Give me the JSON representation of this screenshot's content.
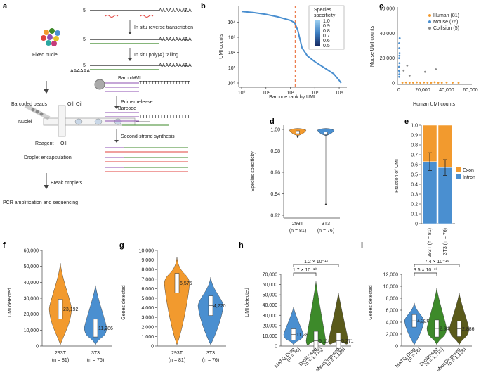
{
  "panels": {
    "a": "a",
    "b": "b",
    "c": "c",
    "d": "d",
    "e": "e",
    "f": "f",
    "g": "g",
    "h": "h",
    "i": "i"
  },
  "panel_a": {
    "fixed_nuclei": "Fixed nuclei",
    "step_rt": "In situ reverse transcription",
    "step_polya": "In situ poly(A) tailing",
    "five": "5′",
    "three": "3′",
    "polyA": "AAAAAAAAAA",
    "polyA_short": "AAAAAA",
    "barcoded_beads": "Barcoded beads",
    "oil": "Oil",
    "nuclei": "Nuclei",
    "reagent": "Reagent",
    "droplet": "Droplet encapsulation",
    "barcode": "Barcode",
    "umi": "UMI",
    "tttt": "TTTTTTTTTTTTTTTTT",
    "primer_release": "Primer release",
    "second_strand": "Second-strand synthesis",
    "break_droplets": "Break droplets",
    "pcr": "PCR amplification and sequencing"
  },
  "chart_data": [
    {
      "id": "b",
      "type": "line",
      "title": "",
      "xlabel": "Barcode rank by UMI",
      "ylabel": "UMI counts",
      "xscale": "log",
      "yscale": "log",
      "x": [
        1,
        3,
        10,
        30,
        100,
        150,
        200,
        300,
        500,
        1000,
        3000,
        6000,
        10000,
        12000
      ],
      "y": [
        50000,
        42000,
        32000,
        22000,
        13000,
        9000,
        3000,
        200,
        60,
        25,
        8,
        4,
        1.5,
        1
      ],
      "xticks": [
        "10⁰",
        "10¹",
        "10²",
        "10³",
        "10⁴"
      ],
      "yticks": [
        "10⁰",
        "10¹",
        "10²",
        "10³",
        "10⁴"
      ],
      "cutoff_rank": 157,
      "legend": {
        "title_line1": "Species",
        "title_line2": "specificity",
        "ticks": [
          "1.0",
          "0.9",
          "0.8",
          "0.7",
          "0.6",
          "0.5"
        ]
      }
    },
    {
      "id": "c",
      "type": "scatter",
      "xlabel": "Human UMI counts",
      "ylabel": "Mouse UMI counts",
      "xlim": [
        0,
        60000
      ],
      "ylim": [
        0,
        60000
      ],
      "xticks": [
        "0",
        "20,000",
        "40,000",
        "60,000"
      ],
      "yticks": [
        "0",
        "20,000",
        "40,000",
        "60,000"
      ],
      "series": [
        {
          "name": "Human (81)",
          "color": "#f29a2e",
          "points": [
            [
              3000,
              300
            ],
            [
              6000,
              400
            ],
            [
              9000,
              200
            ],
            [
              12000,
              300
            ],
            [
              15000,
              500
            ],
            [
              18000,
              200
            ],
            [
              21000,
              400
            ],
            [
              24000,
              300
            ],
            [
              27000,
              200
            ],
            [
              30000,
              600
            ],
            [
              33000,
              300
            ],
            [
              36000,
              200
            ],
            [
              40000,
              400
            ],
            [
              45000,
              300
            ],
            [
              50000,
              200
            ]
          ]
        },
        {
          "name": "Mouse (76)",
          "color": "#4a8fd0",
          "points": [
            [
              300,
              5000
            ],
            [
              400,
              9000
            ],
            [
              200,
              13000
            ],
            [
              500,
              16000
            ],
            [
              300,
              20000
            ],
            [
              600,
              24000
            ],
            [
              400,
              28000
            ],
            [
              300,
              32000
            ],
            [
              700,
              36000
            ],
            [
              200,
              10000
            ],
            [
              500,
              22000
            ],
            [
              400,
              7000
            ]
          ]
        },
        {
          "name": "Collision (5)",
          "color": "#8a8a8a",
          "points": [
            [
              4000,
              10000
            ],
            [
              9000,
              6000
            ],
            [
              22000,
              9000
            ],
            [
              31000,
              11000
            ],
            [
              7000,
              14000
            ]
          ]
        }
      ]
    },
    {
      "id": "d",
      "type": "violin",
      "ylabel": "Species specificity",
      "ylim": [
        0.92,
        1.0
      ],
      "yticks": [
        "0.92",
        "0.94",
        "0.96",
        "0.98",
        "1.00"
      ],
      "categories": [
        {
          "name": "293T",
          "n": "(n = 81)",
          "color": "#f29a2e",
          "median": 0.998,
          "min": 0.993
        },
        {
          "name": "3T3",
          "n": "(n = 76)",
          "color": "#4a8fd0",
          "median": 0.997,
          "min": 0.93
        }
      ]
    },
    {
      "id": "e",
      "type": "bar",
      "ylabel": "Fraction of UMI",
      "ylim": [
        0,
        1.0
      ],
      "yticks": [
        "0",
        "0.1",
        "0.2",
        "0.3",
        "0.4",
        "0.5",
        "0.6",
        "0.7",
        "0.8",
        "0.9",
        "1.0"
      ],
      "categories": [
        "293T (n = 81)",
        "3T3 (n = 76)"
      ],
      "series": [
        {
          "name": "Intron",
          "color": "#4a8fd0",
          "values": [
            0.63,
            0.57
          ]
        },
        {
          "name": "Exon",
          "color": "#f29a2e",
          "values": [
            0.37,
            0.43
          ]
        }
      ],
      "error": [
        0.09,
        0.08
      ]
    },
    {
      "id": "f",
      "type": "violin",
      "ylabel": "UMI detected",
      "ylim": [
        0,
        60000
      ],
      "yticks": [
        "0",
        "10,000",
        "20,000",
        "30,000",
        "40,000",
        "50,000",
        "60,000"
      ],
      "categories": [
        {
          "name": "293T",
          "n": "(n = 81)",
          "color": "#f29a2e",
          "median": 23192,
          "label": "23,192",
          "max": 52000
        },
        {
          "name": "3T3",
          "n": "(n = 76)",
          "color": "#4a8fd0",
          "median": 11286,
          "label": "11,286",
          "max": 38000
        }
      ]
    },
    {
      "id": "g",
      "type": "violin",
      "ylabel": "Genes detected",
      "ylim": [
        0,
        10000
      ],
      "yticks": [
        "0",
        "1,000",
        "2,000",
        "3,000",
        "4,000",
        "5,000",
        "6,000",
        "7,000",
        "8,000",
        "9,000",
        "10,000"
      ],
      "categories": [
        {
          "name": "293T",
          "n": "(n = 81)",
          "color": "#f29a2e",
          "median": 6575,
          "label": "6,575",
          "max": 9300
        },
        {
          "name": "3T3",
          "n": "(n = 76)",
          "color": "#4a8fd0",
          "median": 4220,
          "label": "4,220",
          "max": 7200
        }
      ]
    },
    {
      "id": "h",
      "type": "violin",
      "ylabel": "UMI detected",
      "ylim": [
        0,
        70000
      ],
      "yticks": [
        "0",
        "10,000",
        "20,000",
        "30,000",
        "40,000",
        "50,000",
        "60,000",
        "70,000"
      ],
      "categories": [
        {
          "name": "MATQ-Drop",
          "n": "(n = 76)",
          "color": "#4a8fd0",
          "median": 11286,
          "label": "11,286",
          "max": 38000
        },
        {
          "name": "DroNc-seq",
          "n": "(n = 1,716)",
          "color": "#3d8a2a",
          "median": 5118,
          "label": "5,118",
          "max": 63000
        },
        {
          "name": "sNucDrop-seq",
          "n": "(n = 1,128)",
          "color": "#5a5a1a",
          "median": 5271,
          "label": "5,271",
          "max": 52000
        }
      ],
      "pvalues": [
        "1.7 × 10⁻¹⁰",
        "1.2 × 10⁻¹²"
      ]
    },
    {
      "id": "i",
      "type": "violin",
      "ylabel": "Genes detected",
      "ylim": [
        0,
        12000
      ],
      "yticks": [
        "0",
        "2,000",
        "4,000",
        "6,000",
        "8,000",
        "10,000",
        "12,000"
      ],
      "categories": [
        {
          "name": "MATQ-Drop",
          "n": "(n = 76)",
          "color": "#4a8fd0",
          "median": 4220,
          "label": "4,220",
          "max": 7200
        },
        {
          "name": "DroNc-seq",
          "n": "(n = 1,716)",
          "color": "#3d8a2a",
          "median": 2943,
          "label": "2,943",
          "max": 9700
        },
        {
          "name": "sNucDrop-seq",
          "n": "(n = 1,128)",
          "color": "#5a5a1a",
          "median": 2886,
          "label": "2,886",
          "max": 8900
        }
      ],
      "pvalues": [
        "3.5 × 10⁻¹⁰",
        "7.4 × 10⁻¹⁶"
      ]
    }
  ]
}
